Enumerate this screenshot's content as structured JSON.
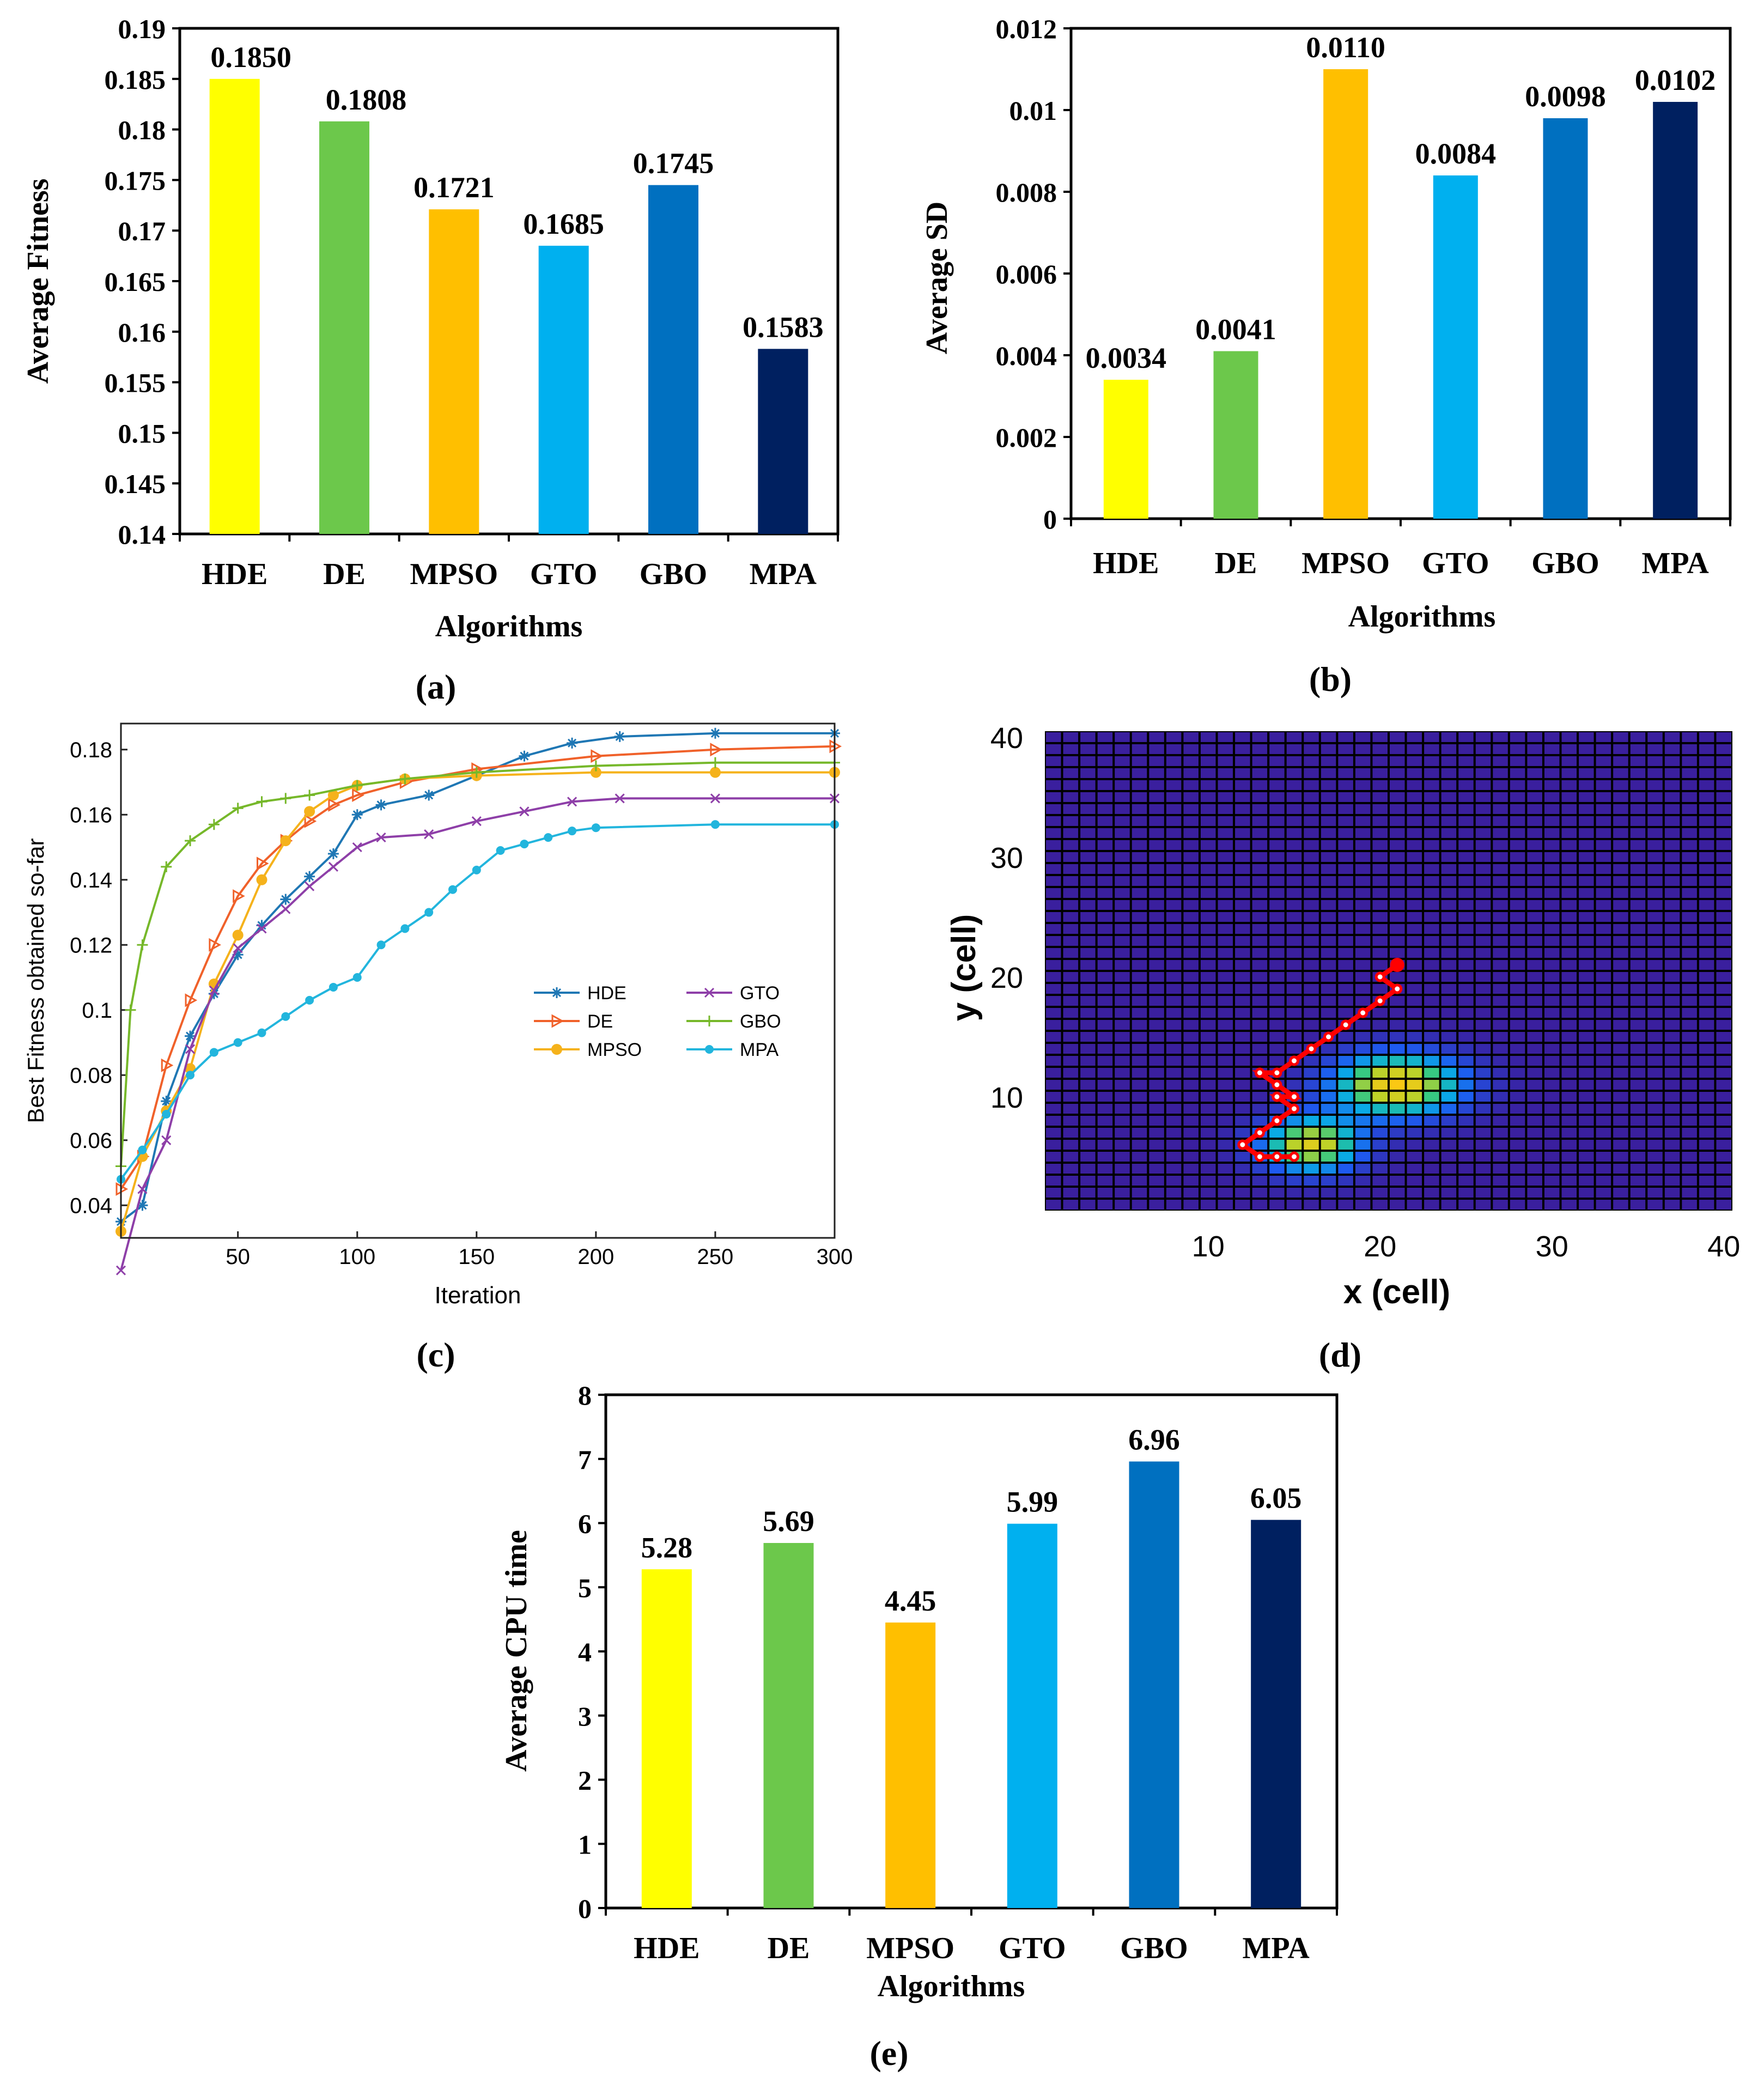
{
  "chart_data": [
    {
      "id": "a",
      "type": "bar",
      "panel_label": "(a)",
      "categories": [
        "HDE",
        "DE",
        "MPSO",
        "GTO",
        "GBO",
        "MPA"
      ],
      "values": [
        0.185,
        0.1808,
        0.1721,
        0.1685,
        0.1745,
        0.1583
      ],
      "value_labels": [
        "0.1850",
        "0.1808",
        "0.1721",
        "0.1685",
        "0.1745",
        "0.1583"
      ],
      "xlabel": "Algorithms",
      "ylabel": "Average Fitness",
      "ylim": [
        0.14,
        0.19
      ],
      "y_ticks": [
        "0.14",
        "0.145",
        "0.15",
        "0.155",
        "0.16",
        "0.165",
        "0.17",
        "0.175",
        "0.18",
        "0.185",
        "0.19"
      ],
      "y_tick_values": [
        0.14,
        0.145,
        0.15,
        0.155,
        0.16,
        0.165,
        0.17,
        0.175,
        0.18,
        0.185,
        0.19
      ]
    },
    {
      "id": "b",
      "type": "bar",
      "panel_label": "(b)",
      "categories": [
        "HDE",
        "DE",
        "MPSO",
        "GTO",
        "GBO",
        "MPA"
      ],
      "values": [
        0.0034,
        0.0041,
        0.011,
        0.0084,
        0.0098,
        0.0102
      ],
      "value_labels": [
        "0.0034",
        "0.0041",
        "0.0110",
        "0.0084",
        "0.0098",
        "0.0102"
      ],
      "xlabel": "Algorithms",
      "ylabel": "Average SD",
      "ylim": [
        0,
        0.012
      ],
      "y_ticks": [
        "0",
        "0.002",
        "0.004",
        "0.006",
        "0.008",
        "0.01",
        "0.012"
      ],
      "y_tick_values": [
        0,
        0.002,
        0.004,
        0.006,
        0.008,
        0.01,
        0.012
      ]
    },
    {
      "id": "c",
      "type": "line",
      "panel_label": "(c)",
      "xlabel": "Iteration",
      "ylabel": "Best Fitness obtained so-far",
      "xlim": [
        1,
        300
      ],
      "ylim": [
        0.03,
        0.188
      ],
      "x_ticks": [
        "50",
        "100",
        "150",
        "200",
        "250",
        "300"
      ],
      "x_tick_values": [
        50,
        100,
        150,
        200,
        250,
        300
      ],
      "y_ticks": [
        "0.04",
        "0.06",
        "0.08",
        "0.1",
        "0.12",
        "0.14",
        "0.16",
        "0.18"
      ],
      "y_tick_values": [
        0.04,
        0.06,
        0.08,
        0.1,
        0.12,
        0.14,
        0.16,
        0.18
      ],
      "series": [
        {
          "name": "HDE",
          "color": "#1f77b4",
          "marker": "asterisk",
          "x": [
            1,
            10,
            20,
            30,
            40,
            50,
            60,
            70,
            80,
            90,
            100,
            110,
            130,
            150,
            170,
            190,
            210,
            250,
            300
          ],
          "y": [
            0.035,
            0.04,
            0.072,
            0.092,
            0.105,
            0.117,
            0.126,
            0.134,
            0.141,
            0.148,
            0.16,
            0.163,
            0.166,
            0.172,
            0.178,
            0.182,
            0.184,
            0.185,
            0.185
          ]
        },
        {
          "name": "DE",
          "color": "#f0612a",
          "marker": "triangle-right",
          "x": [
            1,
            10,
            20,
            30,
            40,
            50,
            60,
            70,
            80,
            90,
            100,
            120,
            150,
            200,
            250,
            300
          ],
          "y": [
            0.045,
            0.055,
            0.083,
            0.103,
            0.12,
            0.135,
            0.145,
            0.152,
            0.158,
            0.163,
            0.166,
            0.17,
            0.174,
            0.178,
            0.18,
            0.181
          ]
        },
        {
          "name": "MPSO",
          "color": "#f5b21b",
          "marker": "circle",
          "x": [
            1,
            10,
            20,
            30,
            40,
            50,
            60,
            70,
            80,
            90,
            100,
            120,
            150,
            200,
            250,
            300
          ],
          "y": [
            0.032,
            0.055,
            0.069,
            0.082,
            0.108,
            0.123,
            0.14,
            0.152,
            0.161,
            0.166,
            0.169,
            0.171,
            0.172,
            0.173,
            0.173,
            0.173
          ]
        },
        {
          "name": "GTO",
          "color": "#8e3fa8",
          "marker": "x",
          "x": [
            1,
            10,
            20,
            30,
            40,
            50,
            60,
            70,
            80,
            90,
            100,
            110,
            130,
            150,
            170,
            190,
            210,
            250,
            300
          ],
          "y": [
            0.02,
            0.045,
            0.06,
            0.088,
            0.106,
            0.119,
            0.125,
            0.131,
            0.138,
            0.144,
            0.15,
            0.153,
            0.154,
            0.158,
            0.161,
            0.164,
            0.165,
            0.165,
            0.165
          ]
        },
        {
          "name": "GBO",
          "color": "#76b82a",
          "marker": "plus",
          "x": [
            1,
            5,
            10,
            20,
            30,
            40,
            50,
            60,
            70,
            80,
            100,
            120,
            150,
            200,
            250,
            300
          ],
          "y": [
            0.052,
            0.1,
            0.12,
            0.144,
            0.152,
            0.157,
            0.162,
            0.164,
            0.165,
            0.166,
            0.169,
            0.171,
            0.173,
            0.175,
            0.176,
            0.176
          ]
        },
        {
          "name": "MPA",
          "color": "#22b5dd",
          "marker": "circle-small",
          "x": [
            1,
            10,
            20,
            30,
            40,
            50,
            60,
            70,
            80,
            90,
            100,
            110,
            120,
            130,
            140,
            150,
            160,
            170,
            180,
            190,
            200,
            250,
            300
          ],
          "y": [
            0.048,
            0.057,
            0.068,
            0.08,
            0.087,
            0.09,
            0.093,
            0.098,
            0.103,
            0.107,
            0.11,
            0.12,
            0.125,
            0.13,
            0.137,
            0.143,
            0.149,
            0.151,
            0.153,
            0.155,
            0.156,
            0.157,
            0.157
          ]
        }
      ],
      "legend_position": "center-right"
    },
    {
      "id": "d",
      "type": "heatmap",
      "panel_label": "(d)",
      "xlabel": "x (cell)",
      "ylabel": "y (cell)",
      "xlim": [
        1,
        40
      ],
      "ylim": [
        1,
        40
      ],
      "x_ticks": [
        "10",
        "20",
        "30",
        "40"
      ],
      "x_tick_values": [
        10,
        20,
        30,
        40
      ],
      "y_ticks": [
        "10",
        "20",
        "30",
        "40"
      ],
      "y_tick_values": [
        10,
        20,
        30,
        40
      ],
      "hotspots": [
        {
          "cx": 21,
          "cy": 11,
          "sigma_x": 2.6,
          "sigma_y": 1.8,
          "amp": 1.0
        },
        {
          "cx": 16,
          "cy": 6,
          "sigma_x": 2.0,
          "sigma_y": 1.6,
          "amp": 0.9
        }
      ],
      "path": [
        [
          21,
          21
        ],
        [
          20,
          20
        ],
        [
          21,
          19
        ],
        [
          20,
          18
        ],
        [
          19,
          17
        ],
        [
          18,
          16
        ],
        [
          17,
          15
        ],
        [
          16,
          14
        ],
        [
          15,
          13
        ],
        [
          14,
          12
        ],
        [
          13,
          12
        ],
        [
          14,
          11
        ],
        [
          15,
          10
        ],
        [
          14,
          10
        ],
        [
          15,
          9
        ],
        [
          14,
          8
        ],
        [
          13,
          7
        ],
        [
          12,
          6
        ],
        [
          13,
          5
        ],
        [
          14,
          5
        ],
        [
          15,
          5
        ]
      ],
      "path_color": "#ff0000",
      "background_color": "#3a1f9e",
      "grid_line_color": "#000000"
    },
    {
      "id": "e",
      "type": "bar",
      "panel_label": "(e)",
      "categories": [
        "HDE",
        "DE",
        "MPSO",
        "GTO",
        "GBO",
        "MPA"
      ],
      "values": [
        5.28,
        5.69,
        4.45,
        5.99,
        6.96,
        6.05
      ],
      "value_labels": [
        "5.28",
        "5.69",
        "4.45",
        "5.99",
        "6.96",
        "6.05"
      ],
      "xlabel": "Algorithms",
      "ylabel": "Average CPU time",
      "ylim": [
        0,
        8
      ],
      "y_ticks": [
        "0",
        "1",
        "2",
        "3",
        "4",
        "5",
        "6",
        "7",
        "8"
      ],
      "y_tick_values": [
        0,
        1,
        2,
        3,
        4,
        5,
        6,
        7,
        8
      ]
    }
  ],
  "bar_colors": [
    "#ffff00",
    "#6cc84b",
    "#ffbf00",
    "#00b0ef",
    "#0070c0",
    "#002060"
  ]
}
